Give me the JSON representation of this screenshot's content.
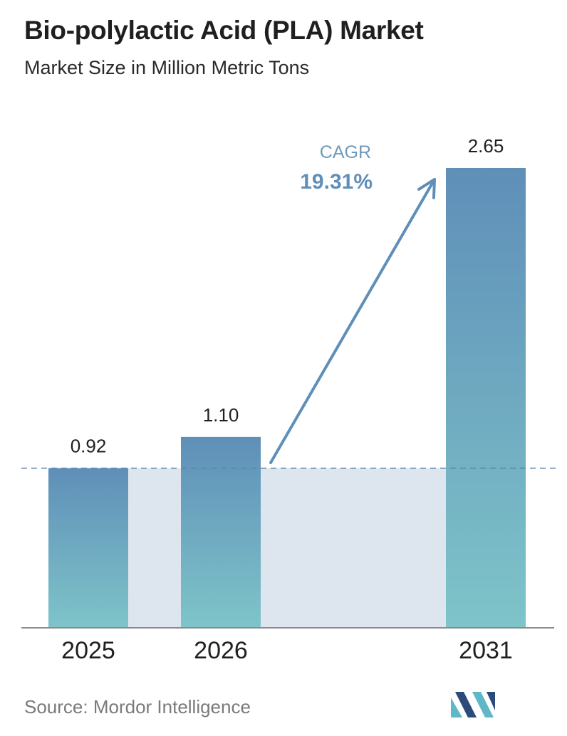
{
  "title": "Bio-polylactic Acid (PLA) Market",
  "subtitle": "Market Size in Million Metric Tons",
  "source": "Source:  Mordor Intelligence",
  "cagr": {
    "label": "CAGR",
    "value": "19.31%"
  },
  "colors": {
    "bar_top": "#5f8fb8",
    "bar_bottom": "#7ec4c9",
    "band": "#dde6ef",
    "dash": "#5b86aa",
    "arrow": "#5f8fb8",
    "cagr_label": "#6f9ab9",
    "cagr_value": "#5f8fb8",
    "axis": "#8a8a8a",
    "logo_dark": "#2c4a7a",
    "logo_light": "#5fb8c8"
  },
  "chart_data": {
    "type": "bar",
    "categories": [
      "2025",
      "2026",
      "2031"
    ],
    "values": [
      0.92,
      1.1,
      2.65
    ],
    "value_labels": [
      "0.92",
      "1.10",
      "2.65"
    ],
    "ylim": [
      0,
      2.65
    ],
    "grid": false,
    "reference_line": 0.92
  }
}
